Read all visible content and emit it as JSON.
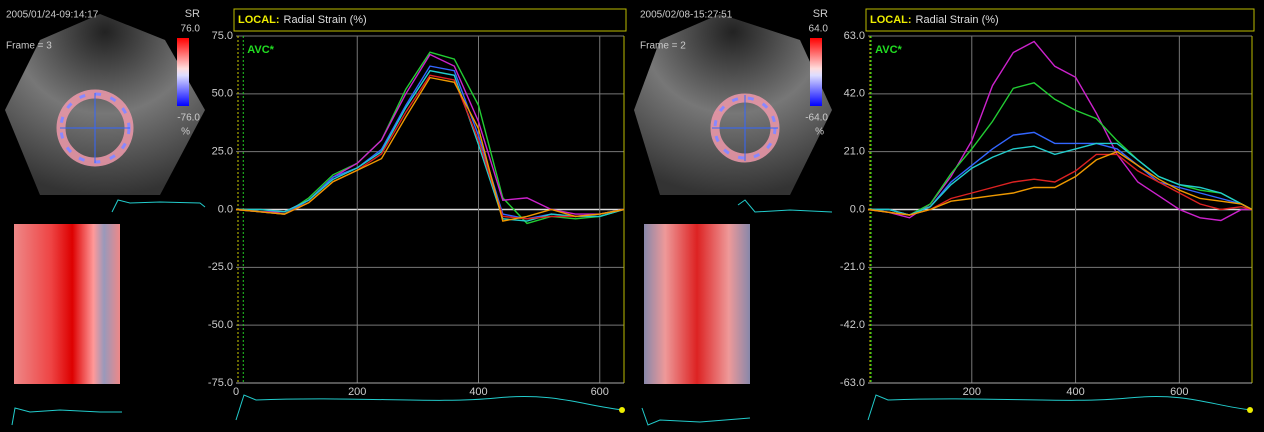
{
  "panels": [
    {
      "timestamp": "2005/01/24-09:14:17",
      "frame": "Frame = 3",
      "scale_name": "SR",
      "scale_max": "76.0",
      "scale_min": "-76.0",
      "scale_unit": "%"
    },
    {
      "timestamp": "2005/02/08-15:27:51",
      "frame": "Frame = 2",
      "scale_name": "SR",
      "scale_max": "64.0",
      "scale_min": "-64.0",
      "scale_unit": "%"
    }
  ],
  "chart_data": [
    {
      "type": "line",
      "title_prefix": "LOCAL:",
      "title": "Radial Strain (%)",
      "annotation": "AVC*",
      "annotation_x": 12,
      "xlim": [
        0,
        640
      ],
      "ylim": [
        -75,
        75
      ],
      "xticks": [
        0,
        200,
        400,
        600
      ],
      "yticks": [
        {
          "value": -75,
          "label": "-75.0"
        },
        {
          "value": -50,
          "label": "-50.0"
        },
        {
          "value": -25,
          "label": "-25.0"
        },
        {
          "value": 0,
          "label": "0.0"
        },
        {
          "value": 25,
          "label": "25.0"
        },
        {
          "value": 50,
          "label": "50.0"
        },
        {
          "value": 75,
          "label": "75.0"
        }
      ],
      "grid": true,
      "x": [
        0,
        40,
        80,
        120,
        160,
        200,
        240,
        280,
        320,
        360,
        400,
        440,
        480,
        520,
        560,
        600,
        640
      ],
      "series": [
        {
          "color": "#22cc33",
          "values": [
            0,
            -1,
            -2,
            5,
            15,
            20,
            30,
            52,
            68,
            65,
            45,
            5,
            -6,
            -3,
            -4,
            -3,
            0
          ]
        },
        {
          "color": "#cc22cc",
          "values": [
            0,
            -1,
            -1,
            4,
            14,
            20,
            30,
            50,
            67,
            62,
            38,
            4,
            5,
            0,
            -2,
            -2,
            0
          ]
        },
        {
          "color": "#3366ff",
          "values": [
            0,
            -1,
            -2,
            4,
            14,
            18,
            26,
            45,
            62,
            60,
            32,
            -2,
            -4,
            -2,
            -3,
            -2,
            0
          ]
        },
        {
          "color": "#22cccc",
          "values": [
            0,
            0,
            -1,
            4,
            13,
            18,
            25,
            44,
            60,
            58,
            28,
            -4,
            -5,
            -2,
            -3,
            -3,
            0
          ]
        },
        {
          "color": "#dd2222",
          "values": [
            0,
            -1,
            -2,
            3,
            12,
            17,
            24,
            42,
            58,
            56,
            30,
            -3,
            -4,
            -3,
            -3,
            -2,
            0
          ]
        },
        {
          "color": "#ee9900",
          "values": [
            0,
            -1,
            -2,
            3,
            12,
            17,
            22,
            40,
            57,
            55,
            35,
            -5,
            -3,
            0,
            -3,
            -2,
            0
          ]
        }
      ]
    },
    {
      "type": "line",
      "title_prefix": "LOCAL:",
      "title": "Radial Strain (%)",
      "annotation": "AVC*",
      "annotation_x": 6,
      "xlim": [
        0,
        740
      ],
      "ylim": [
        -63,
        63
      ],
      "xticks": [
        200,
        400,
        600
      ],
      "yticks": [
        {
          "value": -63,
          "label": "-63.0"
        },
        {
          "value": -42,
          "label": "-42.0"
        },
        {
          "value": -21,
          "label": "-21.0"
        },
        {
          "value": 0,
          "label": "0.0"
        },
        {
          "value": 21,
          "label": "21.0"
        },
        {
          "value": 42,
          "label": "42.0"
        },
        {
          "value": 63,
          "label": "63.0"
        }
      ],
      "grid": true,
      "x": [
        0,
        40,
        80,
        120,
        160,
        200,
        240,
        280,
        320,
        360,
        400,
        440,
        480,
        520,
        560,
        600,
        640,
        680,
        720,
        740
      ],
      "series": [
        {
          "color": "#cc22cc",
          "values": [
            0,
            -1,
            -3,
            2,
            12,
            25,
            45,
            57,
            61,
            52,
            48,
            35,
            20,
            10,
            5,
            0,
            -3,
            -4,
            0,
            0
          ]
        },
        {
          "color": "#22cc33",
          "values": [
            0,
            0,
            -2,
            2,
            13,
            22,
            32,
            44,
            46,
            40,
            36,
            33,
            25,
            18,
            12,
            9,
            7,
            6,
            2,
            0
          ]
        },
        {
          "color": "#3366ff",
          "values": [
            0,
            0,
            -2,
            1,
            10,
            16,
            22,
            27,
            28,
            24,
            24,
            24,
            22,
            16,
            10,
            8,
            6,
            4,
            2,
            0
          ]
        },
        {
          "color": "#22cccc",
          "values": [
            0,
            0,
            -2,
            1,
            9,
            15,
            19,
            22,
            23,
            20,
            22,
            24,
            24,
            18,
            12,
            9,
            8,
            6,
            2,
            0
          ]
        },
        {
          "color": "#dd2222",
          "values": [
            0,
            -1,
            -2,
            0,
            4,
            6,
            8,
            10,
            11,
            10,
            14,
            20,
            20,
            14,
            10,
            6,
            2,
            0,
            1,
            0
          ]
        },
        {
          "color": "#ee9900",
          "values": [
            0,
            -1,
            -2,
            0,
            3,
            4,
            5,
            6,
            8,
            8,
            12,
            18,
            21,
            16,
            11,
            7,
            4,
            3,
            2,
            0
          ]
        }
      ]
    }
  ]
}
